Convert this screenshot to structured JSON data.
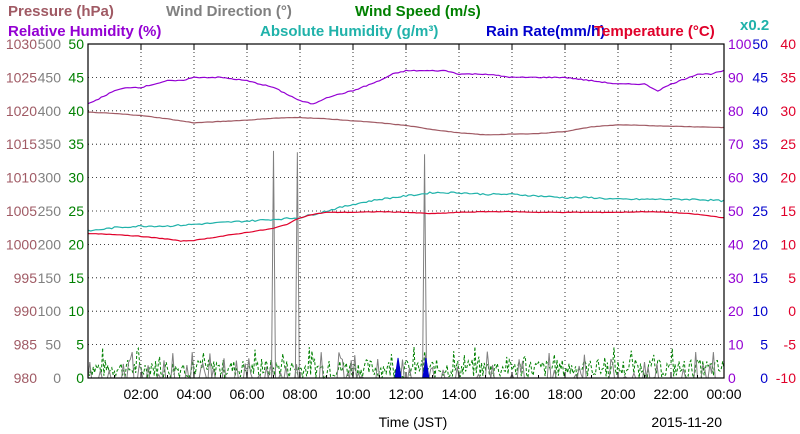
{
  "colors": {
    "pressure": "#a05a64",
    "wind_direction": "#808080",
    "wind_speed": "#008000",
    "relative_humidity": "#9400d3",
    "absolute_humidity": "#20b2aa",
    "rain_rate": "#0000cd",
    "temperature": "#e0002a"
  },
  "chart_data": {
    "type": "line",
    "date": "2015-11-20",
    "xlabel": "Time (JST)",
    "x_ticks": [
      "02:00",
      "04:00",
      "06:00",
      "08:00",
      "10:00",
      "12:00",
      "14:00",
      "16:00",
      "18:00",
      "20:00",
      "22:00",
      "00:00"
    ],
    "titles": {
      "pressure": "Pressure (hPa)",
      "wind_direction": "Wind Direction (°)",
      "wind_speed": "Wind Speed (m/s)",
      "relative_humidity": "Relative Humidity (%)",
      "absolute_humidity": "Absolute Humidity (g/m³)",
      "rain_rate": "Rain Rate(mm/h)",
      "temperature": "Temperature (°C)",
      "abs_hum_scale": "x0.2"
    },
    "axes": {
      "pressure": {
        "ticks": [
          "980",
          "985",
          "990",
          "995",
          "1000",
          "1005",
          "1010",
          "1015",
          "1020",
          "1025",
          "1030"
        ],
        "range": [
          980,
          1030
        ]
      },
      "wind_direction": {
        "ticks": [
          "0",
          "50",
          "100",
          "150",
          "200",
          "250",
          "300",
          "350",
          "400",
          "450",
          "500"
        ],
        "range": [
          0,
          500
        ]
      },
      "wind_speed": {
        "ticks": [
          "0",
          "5",
          "10",
          "15",
          "20",
          "25",
          "30",
          "35",
          "40",
          "45",
          "50"
        ],
        "range": [
          0,
          50
        ]
      },
      "relative_humidity": {
        "ticks": [
          "0",
          "10",
          "20",
          "30",
          "40",
          "50",
          "60",
          "70",
          "80",
          "90",
          "100"
        ],
        "range": [
          0,
          100
        ]
      },
      "rain_rate": {
        "ticks": [
          "0",
          "5",
          "10",
          "15",
          "20",
          "25",
          "30",
          "35",
          "40",
          "45",
          "50"
        ],
        "range": [
          0,
          50
        ]
      },
      "temperature": {
        "ticks": [
          "-10",
          "-5",
          "0",
          "5",
          "10",
          "15",
          "20",
          "25",
          "30",
          "35",
          "40"
        ],
        "range": [
          -10,
          40
        ]
      }
    },
    "series": [
      {
        "name": "Pressure (hPa)",
        "key": "pressure",
        "axis": "pressure",
        "x": [
          0,
          1,
          2,
          3,
          4,
          5,
          6,
          7,
          8,
          9,
          10,
          11,
          12,
          13,
          14,
          15,
          16,
          17,
          18,
          19,
          20,
          21,
          22,
          23,
          24
        ],
        "values": [
          1019.8,
          1019.6,
          1019.3,
          1018.8,
          1018.2,
          1018.4,
          1018.6,
          1018.9,
          1019.0,
          1018.8,
          1018.5,
          1018.2,
          1017.8,
          1017.2,
          1016.7,
          1016.4,
          1016.5,
          1016.6,
          1016.9,
          1017.6,
          1017.9,
          1017.8,
          1017.7,
          1017.6,
          1017.5
        ]
      },
      {
        "name": "Relative Humidity (%)",
        "key": "relative_humidity",
        "axis": "relative_humidity",
        "x": [
          0,
          0.5,
          1,
          1.5,
          2,
          2.5,
          3,
          3.5,
          4,
          5,
          6,
          7,
          7.5,
          8,
          8.5,
          9,
          10,
          11,
          11.5,
          12,
          13,
          13.5,
          14,
          15,
          16,
          17,
          18,
          19,
          20,
          21,
          21.5,
          22,
          23,
          23.5,
          24
        ],
        "values": [
          82,
          84,
          86,
          87,
          87,
          88,
          89,
          89,
          90,
          90,
          89,
          87,
          85,
          83,
          82,
          84,
          86,
          89,
          91,
          92,
          92,
          92,
          91,
          91,
          90,
          90,
          90,
          89,
          88,
          88,
          86,
          88,
          91,
          91,
          92
        ]
      },
      {
        "name": "Absolute Humidity (g/m³)",
        "key": "absolute_humidity",
        "axis": "relative_humidity",
        "x": [
          0,
          1,
          2,
          3,
          4,
          5,
          6,
          7,
          8,
          9,
          10,
          11,
          12,
          12.5,
          13,
          14,
          15,
          16,
          17,
          18,
          19,
          20,
          21,
          22,
          23,
          24
        ],
        "values": [
          44,
          45,
          45.5,
          45.5,
          46,
          46.5,
          47,
          47.5,
          48,
          50,
          52,
          53.5,
          54.5,
          55,
          55.5,
          55.5,
          55,
          55,
          54.5,
          54,
          54,
          53.5,
          53.5,
          53.5,
          53.5,
          53
        ]
      },
      {
        "name": "Temperature (°C)",
        "key": "temperature",
        "axis": "temperature",
        "x": [
          0,
          1,
          2,
          3,
          3.5,
          4,
          5,
          6,
          7,
          7.5,
          8,
          8.5,
          9,
          10,
          11,
          12,
          13,
          14,
          15,
          16,
          17,
          18,
          19,
          20,
          21,
          22,
          23,
          24
        ],
        "values": [
          11.6,
          11.5,
          11.2,
          10.8,
          10.5,
          10.6,
          11.2,
          11.8,
          12.4,
          13,
          14,
          14.5,
          14.8,
          14.8,
          14.9,
          14.8,
          14.6,
          14.8,
          14.9,
          14.9,
          14.8,
          14.8,
          14.8,
          14.8,
          14.9,
          14.8,
          14.5,
          14
        ]
      },
      {
        "name": "Wind Direction (°)",
        "key": "wind_direction",
        "axis": "wind_direction",
        "peaks": [
          {
            "x": 7.0,
            "value": 340
          },
          {
            "x": 7.9,
            "value": 338
          },
          {
            "x": 12.7,
            "value": 335
          }
        ]
      },
      {
        "name": "Wind Speed (m/s)",
        "key": "wind_speed",
        "axis": "wind_speed",
        "typical_range": [
          0,
          4
        ]
      },
      {
        "name": "Rain Rate(mm/h)",
        "key": "rain_rate",
        "axis": "rain_rate",
        "x": [
          11.7,
          12.75
        ],
        "values": [
          3,
          3
        ]
      }
    ]
  }
}
